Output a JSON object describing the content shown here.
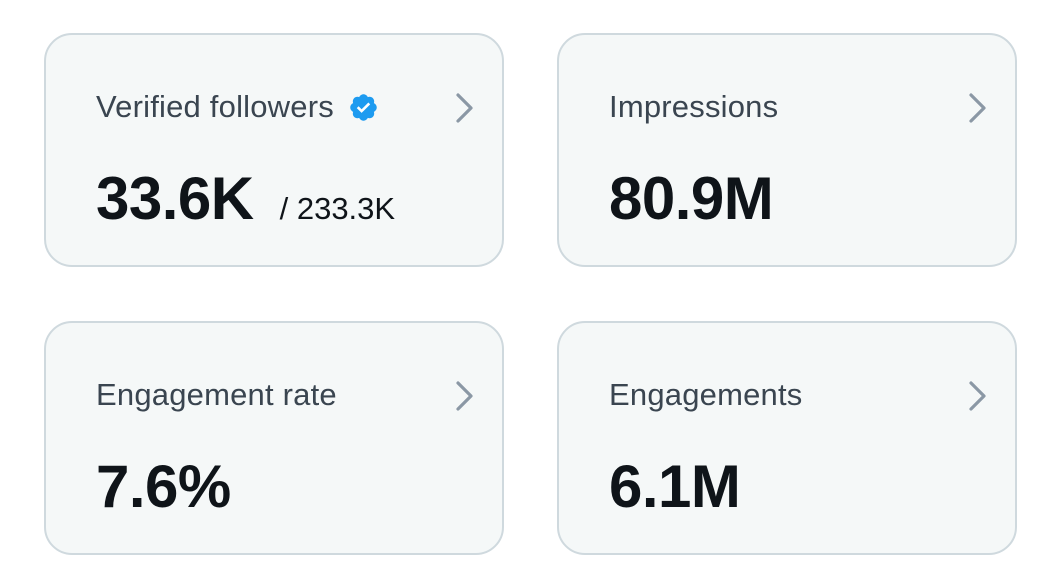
{
  "cards": [
    {
      "label": "Verified followers",
      "value": "33.6K",
      "subvalue": "/ 233.3K",
      "icon": "verified-badge-icon"
    },
    {
      "label": "Impressions",
      "value": "80.9M"
    },
    {
      "label": "Engagement rate",
      "value": "7.6%"
    },
    {
      "label": "Engagements",
      "value": "6.1M"
    }
  ],
  "colors": {
    "card_background": "#f5f8f8",
    "card_border": "#cfd9de",
    "label_text": "#3a4550",
    "value_text": "#0f1419",
    "chevron": "#8b98a5",
    "verified_badge": "#1d9bf0"
  }
}
